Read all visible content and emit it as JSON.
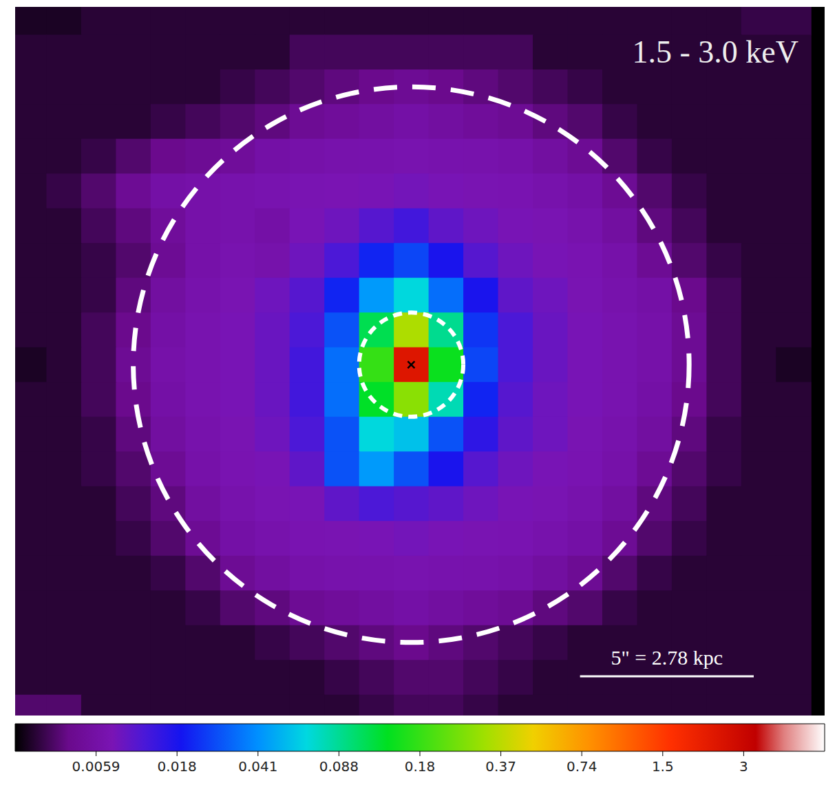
{
  "chart_data": {
    "type": "heatmap",
    "title": "1.5 - 3.0 keV",
    "tick_labels": false,
    "xlim": [
      -11.4,
      11.9
    ],
    "ylim": [
      -10.1,
      10.3
    ],
    "x": [
      -11,
      -10,
      -9,
      -8,
      -7,
      -6,
      -5,
      -4,
      -3,
      -2,
      -1,
      0,
      1,
      2,
      3,
      4,
      5,
      6,
      7,
      8,
      9,
      10,
      11
    ],
    "y": [
      10,
      9,
      8,
      7,
      6,
      5,
      4,
      3,
      2,
      1,
      0,
      -1,
      -2,
      -3,
      -4,
      -5,
      -6,
      -7,
      -8,
      -9,
      -10
    ],
    "values": [
      [
        0.001,
        0.001,
        0.0015,
        0.0015,
        0.0015,
        0.0015,
        0.0015,
        0.0015,
        0.0015,
        0.0015,
        0.0015,
        0.0015,
        0.0015,
        0.0015,
        0.0015,
        0.0015,
        0.0015,
        0.0015,
        0.0015,
        0.0015,
        0.0015,
        0.002,
        0.002
      ],
      [
        0.0015,
        0.0015,
        0.0015,
        0.0015,
        0.0015,
        0.0015,
        0.0015,
        0.0015,
        0.0025,
        0.0025,
        0.0025,
        0.0025,
        0.0025,
        0.0025,
        0.0025,
        0.0015,
        0.0015,
        0.0015,
        0.0015,
        0.0015,
        0.0015,
        0.0015,
        0.0015
      ],
      [
        0.0015,
        0.0015,
        0.0015,
        0.0015,
        0.0015,
        0.0015,
        0.002,
        0.0025,
        0.003,
        0.0035,
        0.004,
        0.0045,
        0.004,
        0.0035,
        0.003,
        0.0025,
        0.002,
        0.0015,
        0.0015,
        0.0015,
        0.0015,
        0.0015,
        0.0015
      ],
      [
        0.0015,
        0.0015,
        0.0015,
        0.0015,
        0.002,
        0.0025,
        0.003,
        0.0035,
        0.0045,
        0.005,
        0.0055,
        0.006,
        0.0055,
        0.005,
        0.0045,
        0.0035,
        0.003,
        0.002,
        0.0015,
        0.0015,
        0.0015,
        0.0015,
        0.0015
      ],
      [
        0.0015,
        0.0015,
        0.002,
        0.003,
        0.004,
        0.0045,
        0.005,
        0.006,
        0.0065,
        0.007,
        0.0072,
        0.0075,
        0.0072,
        0.007,
        0.0065,
        0.0055,
        0.0045,
        0.003,
        0.002,
        0.0015,
        0.0015,
        0.0015,
        0.0015
      ],
      [
        0.0015,
        0.002,
        0.003,
        0.0045,
        0.006,
        0.0065,
        0.007,
        0.0075,
        0.008,
        0.0082,
        0.0085,
        0.009,
        0.0085,
        0.008,
        0.0078,
        0.007,
        0.006,
        0.0045,
        0.003,
        0.002,
        0.0015,
        0.0015,
        0.0015
      ],
      [
        0.0015,
        0.0015,
        0.0025,
        0.0035,
        0.005,
        0.0065,
        0.007,
        0.006,
        0.0085,
        0.0095,
        0.012,
        0.014,
        0.011,
        0.0095,
        0.0085,
        0.008,
        0.007,
        0.0055,
        0.0035,
        0.0025,
        0.0015,
        0.0015,
        0.0015
      ],
      [
        0.0015,
        0.0015,
        0.002,
        0.003,
        0.0045,
        0.0065,
        0.0075,
        0.0068,
        0.0095,
        0.013,
        0.022,
        0.028,
        0.018,
        0.012,
        0.0095,
        0.0085,
        0.0078,
        0.0065,
        0.0045,
        0.003,
        0.002,
        0.0015,
        0.0015
      ],
      [
        0.0015,
        0.0015,
        0.002,
        0.0035,
        0.0055,
        0.007,
        0.008,
        0.0095,
        0.012,
        0.022,
        0.045,
        0.07,
        0.035,
        0.018,
        0.011,
        0.0095,
        0.008,
        0.007,
        0.006,
        0.004,
        0.0025,
        0.0015,
        0.0015
      ],
      [
        0.0015,
        0.0015,
        0.0025,
        0.004,
        0.006,
        0.0075,
        0.0085,
        0.01,
        0.013,
        0.03,
        0.12,
        0.35,
        0.09,
        0.025,
        0.013,
        0.01,
        0.0085,
        0.0075,
        0.0065,
        0.0045,
        0.0025,
        0.0015,
        0.0015
      ],
      [
        0.001,
        0.0015,
        0.0025,
        0.0045,
        0.0065,
        0.0075,
        0.0085,
        0.01,
        0.014,
        0.035,
        0.18,
        2.5,
        0.15,
        0.028,
        0.013,
        0.01,
        0.0085,
        0.0075,
        0.0065,
        0.0045,
        0.0025,
        0.0015,
        0.001
      ],
      [
        0.0015,
        0.0015,
        0.0025,
        0.004,
        0.006,
        0.0075,
        0.0085,
        0.01,
        0.014,
        0.035,
        0.14,
        0.3,
        0.08,
        0.022,
        0.012,
        0.0095,
        0.0085,
        0.0075,
        0.006,
        0.004,
        0.0025,
        0.0015,
        0.0015
      ],
      [
        0.0015,
        0.0015,
        0.002,
        0.0035,
        0.0055,
        0.007,
        0.008,
        0.0095,
        0.013,
        0.03,
        0.07,
        0.06,
        0.03,
        0.016,
        0.011,
        0.0095,
        0.008,
        0.007,
        0.0055,
        0.0035,
        0.002,
        0.0015,
        0.0015
      ],
      [
        0.0015,
        0.0015,
        0.002,
        0.003,
        0.0045,
        0.0065,
        0.0078,
        0.0085,
        0.011,
        0.03,
        0.045,
        0.03,
        0.018,
        0.012,
        0.0095,
        0.0085,
        0.0078,
        0.0065,
        0.0045,
        0.003,
        0.002,
        0.0015,
        0.0015
      ],
      [
        0.0015,
        0.0015,
        0.0015,
        0.0025,
        0.0035,
        0.0055,
        0.007,
        0.008,
        0.0085,
        0.011,
        0.013,
        0.012,
        0.011,
        0.0095,
        0.0085,
        0.008,
        0.007,
        0.0055,
        0.0035,
        0.0025,
        0.0015,
        0.0015,
        0.0015
      ],
      [
        0.0015,
        0.0015,
        0.0015,
        0.002,
        0.003,
        0.0045,
        0.006,
        0.007,
        0.0078,
        0.008,
        0.0085,
        0.009,
        0.0085,
        0.008,
        0.0078,
        0.007,
        0.006,
        0.0045,
        0.003,
        0.002,
        0.0015,
        0.0015,
        0.0015
      ],
      [
        0.0015,
        0.0015,
        0.0015,
        0.0015,
        0.002,
        0.003,
        0.0045,
        0.0055,
        0.0065,
        0.007,
        0.0072,
        0.0075,
        0.0072,
        0.007,
        0.0065,
        0.0055,
        0.0045,
        0.003,
        0.002,
        0.0015,
        0.0015,
        0.0015,
        0.0015
      ],
      [
        0.0015,
        0.0015,
        0.0015,
        0.0015,
        0.0015,
        0.002,
        0.003,
        0.0035,
        0.0045,
        0.005,
        0.0055,
        0.006,
        0.0055,
        0.005,
        0.0045,
        0.0035,
        0.003,
        0.002,
        0.0015,
        0.0015,
        0.0015,
        0.0015,
        0.0015
      ],
      [
        0.0015,
        0.0015,
        0.0015,
        0.0015,
        0.0015,
        0.0015,
        0.0015,
        0.002,
        0.0025,
        0.003,
        0.0035,
        0.004,
        0.0035,
        0.003,
        0.0025,
        0.002,
        0.0015,
        0.0015,
        0.0015,
        0.0015,
        0.0015,
        0.0015,
        0.0015
      ],
      [
        0.0015,
        0.0015,
        0.0015,
        0.0015,
        0.0015,
        0.0015,
        0.0015,
        0.0015,
        0.0015,
        0.002,
        0.0025,
        0.003,
        0.003,
        0.0025,
        0.002,
        0.0015,
        0.0015,
        0.0015,
        0.0015,
        0.0015,
        0.0015,
        0.0015,
        0.0015
      ],
      [
        0.003,
        0.003,
        0.0015,
        0.0015,
        0.0015,
        0.0015,
        0.0015,
        0.0015,
        0.0015,
        0.0015,
        0.002,
        0.0025,
        0.0025,
        0.002,
        0.0015,
        0.0015,
        0.0015,
        0.0015,
        0.0015,
        0.0015,
        0.0015,
        0.0015,
        0.0015
      ]
    ],
    "colorbar": {
      "range": [
        0,
        6
      ],
      "ticks": [
        0.0059,
        0.018,
        0.041,
        0.088,
        0.18,
        0.37,
        0.74,
        1.5,
        3
      ]
    },
    "circles": [
      {
        "x": 0,
        "y": 0,
        "radius": 8,
        "line_style": "dashed"
      },
      {
        "x": 0,
        "y": 0,
        "radius": 1.5,
        "line_style": "dotted"
      }
    ],
    "markers": [
      {
        "x": 0,
        "y": 0,
        "marker": "x"
      }
    ],
    "scale_bar": {
      "label": "5\" = 2.78 kpc",
      "length": 5
    }
  }
}
